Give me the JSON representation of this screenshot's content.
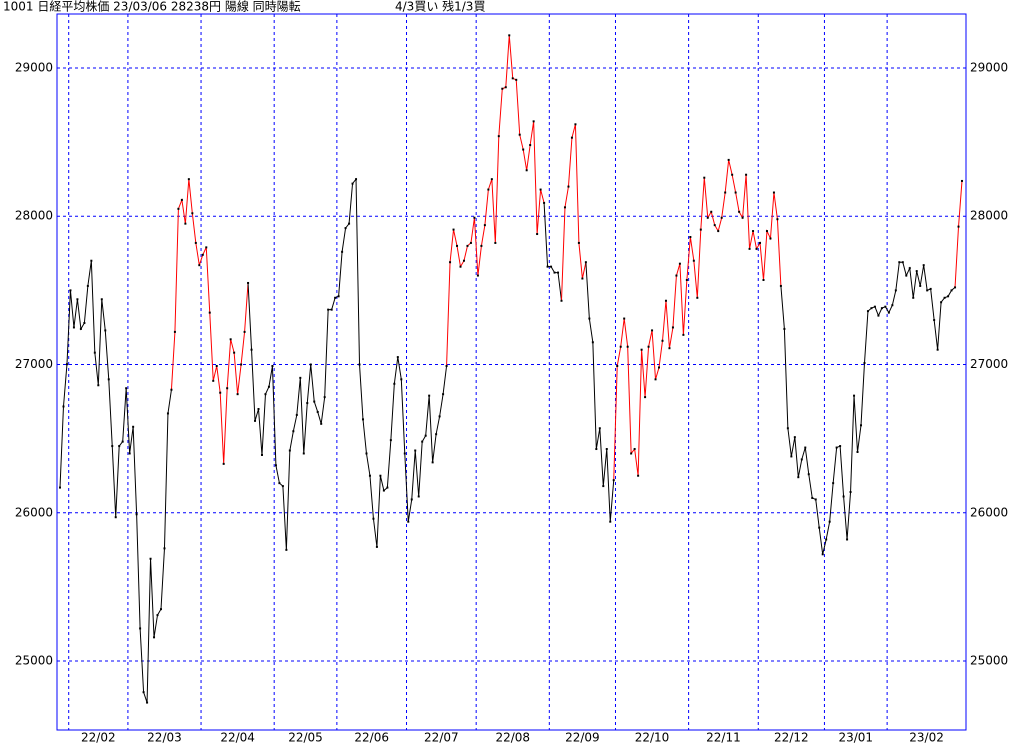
{
  "chart_data": {
    "type": "line",
    "title": "1001 日経平均株価 23/03/06 28238円 陽線 同時陽転",
    "annotation": "4/3買い 残1/3買",
    "ylim": [
      24535,
      29364
    ],
    "yticks": [
      25000,
      26000,
      27000,
      28000,
      29000
    ],
    "grid": true,
    "frame_color": "#0000ff",
    "grid_color": "#0000ff",
    "marker_color": "#000000",
    "categories": [
      null,
      null,
      null,
      "22/02",
      null,
      null,
      null,
      null,
      null,
      null,
      null,
      null,
      null,
      null,
      null,
      null,
      null,
      null,
      null,
      null,
      "22/03",
      null,
      null,
      null,
      null,
      null,
      null,
      null,
      null,
      null,
      null,
      null,
      null,
      null,
      null,
      null,
      null,
      null,
      null,
      null,
      null,
      "22/04",
      null,
      null,
      null,
      null,
      null,
      null,
      null,
      null,
      null,
      null,
      null,
      null,
      null,
      null,
      null,
      null,
      null,
      null,
      null,
      null,
      "22/05",
      null,
      null,
      null,
      null,
      null,
      null,
      null,
      null,
      null,
      null,
      null,
      null,
      null,
      null,
      null,
      null,
      null,
      "22/06",
      null,
      null,
      null,
      null,
      null,
      null,
      null,
      null,
      null,
      null,
      null,
      null,
      null,
      null,
      null,
      null,
      null,
      null,
      null,
      "22/07",
      null,
      null,
      null,
      null,
      null,
      null,
      null,
      null,
      null,
      null,
      null,
      null,
      null,
      null,
      null,
      null,
      null,
      null,
      null,
      "22/08",
      null,
      null,
      null,
      null,
      null,
      null,
      null,
      null,
      null,
      null,
      null,
      null,
      null,
      null,
      null,
      null,
      null,
      null,
      null,
      null,
      "22/09",
      null,
      null,
      null,
      null,
      null,
      null,
      null,
      null,
      null,
      null,
      null,
      null,
      null,
      null,
      null,
      null,
      null,
      null,
      "22/10",
      null,
      null,
      null,
      null,
      null,
      null,
      null,
      null,
      null,
      null,
      null,
      null,
      null,
      null,
      null,
      null,
      null,
      null,
      null,
      null,
      "22/11",
      null,
      null,
      null,
      null,
      null,
      null,
      null,
      null,
      null,
      null,
      null,
      null,
      null,
      null,
      null,
      null,
      null,
      null,
      null,
      "22/12",
      null,
      null,
      null,
      null,
      null,
      null,
      null,
      null,
      null,
      null,
      null,
      null,
      null,
      null,
      null,
      null,
      null,
      null,
      "23/01",
      null,
      null,
      null,
      null,
      null,
      null,
      null,
      null,
      null,
      null,
      null,
      null,
      null,
      null,
      null,
      null,
      null,
      "23/02",
      null,
      null,
      null,
      null,
      null,
      null,
      null,
      null,
      null,
      null,
      null,
      null,
      null,
      null,
      null,
      null,
      null,
      null,
      null,
      null,
      null
    ],
    "values": [
      26170,
      26717,
      27002,
      27500,
      27250,
      27440,
      27240,
      27280,
      27530,
      27700,
      27080,
      26860,
      27440,
      27230,
      26900,
      26450,
      25970,
      26450,
      26480,
      26840,
      26400,
      26580,
      25990,
      25220,
      24790,
      24720,
      25690,
      25160,
      25310,
      25350,
      25760,
      26670,
      26830,
      27220,
      28050,
      28110,
      27950,
      28250,
      28020,
      27820,
      27670,
      27740,
      27790,
      27350,
      26890,
      26990,
      26810,
      26330,
      26840,
      27170,
      27080,
      26800,
      27000,
      27220,
      27550,
      27100,
      26620,
      26700,
      26390,
      26800,
      26850,
      26990,
      26320,
      26200,
      26180,
      25750,
      26420,
      26550,
      26660,
      26910,
      26400,
      26740,
      27000,
      26750,
      26680,
      26600,
      26780,
      27370,
      27370,
      27450,
      27460,
      27760,
      27920,
      27950,
      28220,
      28250,
      27000,
      26630,
      26400,
      26250,
      25960,
      25770,
      26250,
      26150,
      26170,
      26490,
      26870,
      27050,
      26900,
      26400,
      25940,
      26090,
      26420,
      26110,
      26480,
      26520,
      26790,
      26340,
      26530,
      26650,
      26800,
      26990,
      27690,
      27910,
      27800,
      27660,
      27700,
      27800,
      27820,
      27990,
      27600,
      27800,
      27940,
      28180,
      28250,
      27820,
      28540,
      28860,
      28870,
      29220,
      28930,
      28920,
      28550,
      28450,
      28310,
      28480,
      28640,
      27880,
      28180,
      28090,
      27660,
      27660,
      27620,
      27620,
      27430,
      28060,
      28200,
      28530,
      28620,
      27820,
      27580,
      27690,
      27310,
      27150,
      26430,
      26570,
      26180,
      26430,
      25940,
      26220,
      26990,
      27120,
      27310,
      27120,
      26400,
      26430,
      26250,
      27100,
      26780,
      27120,
      27230,
      26900,
      26980,
      27160,
      27430,
      27110,
      27250,
      27600,
      27680,
      27200,
      27570,
      27860,
      27700,
      27450,
      27910,
      28260,
      27990,
      28030,
      27940,
      27900,
      27990,
      28160,
      28380,
      28280,
      28160,
      28030,
      27990,
      28280,
      27780,
      27900,
      27780,
      27820,
      27570,
      27900,
      27850,
      28160,
      27980,
      27530,
      27240,
      26570,
      26380,
      26510,
      26240,
      26360,
      26440,
      26260,
      26100,
      26090,
      25900,
      25720,
      25820,
      25940,
      26200,
      26440,
      26450,
      26110,
      25820,
      26140,
      26790,
      26410,
      26590,
      27010,
      27360,
      27380,
      27390,
      27330,
      27380,
      27390,
      27350,
      27400,
      27500,
      27690,
      27690,
      27600,
      27650,
      27450,
      27630,
      27530,
      27670,
      27500,
      27510,
      27300,
      27100,
      27420,
      27450,
      27460,
      27500,
      27520,
      27930,
      28238
    ],
    "line_colors": [
      "#000",
      "#000",
      "#000",
      "#000",
      "#000",
      "#000",
      "#000",
      "#000",
      "#000",
      "#000",
      "#000",
      "#000",
      "#000",
      "#000",
      "#000",
      "#000",
      "#000",
      "#000",
      "#000",
      "#000",
      "#000",
      "#000",
      "#000",
      "#000",
      "#000",
      "#000",
      "#000",
      "#000",
      "#000",
      "#000",
      "#000",
      "#000",
      "#000",
      "#f00",
      "#f00",
      "#f00",
      "#f00",
      "#f00",
      "#f00",
      "#f00",
      "#f00",
      "#f00",
      "#f00",
      "#f00",
      "#f00",
      "#f00",
      "#f00",
      "#f00",
      "#f00",
      "#f00",
      "#f00",
      "#f00",
      "#f00",
      "#f00",
      "#f00",
      "#000",
      "#000",
      "#000",
      "#000",
      "#000",
      "#000",
      "#000",
      "#000",
      "#000",
      "#000",
      "#000",
      "#000",
      "#000",
      "#000",
      "#000",
      "#000",
      "#000",
      "#000",
      "#000",
      "#000",
      "#000",
      "#000",
      "#000",
      "#000",
      "#000",
      "#000",
      "#000",
      "#000",
      "#000",
      "#000",
      "#000",
      "#000",
      "#000",
      "#000",
      "#000",
      "#000",
      "#000",
      "#000",
      "#000",
      "#000",
      "#000",
      "#000",
      "#000",
      "#000",
      "#000",
      "#000",
      "#000",
      "#000",
      "#000",
      "#000",
      "#000",
      "#000",
      "#000",
      "#000",
      "#000",
      "#000",
      "#000",
      "#f00",
      "#f00",
      "#f00",
      "#f00",
      "#f00",
      "#f00",
      "#f00",
      "#f00",
      "#f00",
      "#f00",
      "#f00",
      "#f00",
      "#f00",
      "#f00",
      "#f00",
      "#f00",
      "#f00",
      "#f00",
      "#f00",
      "#f00",
      "#f00",
      "#f00",
      "#f00",
      "#f00",
      "#f00",
      "#f00",
      "#f00",
      "#f00",
      "#000",
      "#000",
      "#000",
      "#000",
      "#000",
      "#f00",
      "#f00",
      "#f00",
      "#f00",
      "#f00",
      "#f00",
      "#f00",
      "#000",
      "#000",
      "#000",
      "#000",
      "#000",
      "#000",
      "#000",
      "#000",
      "#f00",
      "#f00",
      "#f00",
      "#f00",
      "#f00",
      "#f00",
      "#f00",
      "#f00",
      "#f00",
      "#f00",
      "#f00",
      "#f00",
      "#f00",
      "#f00",
      "#f00",
      "#f00",
      "#f00",
      "#f00",
      "#f00",
      "#f00",
      "#f00",
      "#f00",
      "#f00",
      "#f00",
      "#f00",
      "#f00",
      "#f00",
      "#f00",
      "#f00",
      "#f00",
      "#f00",
      "#f00",
      "#f00",
      "#f00",
      "#f00",
      "#f00",
      "#f00",
      "#f00",
      "#f00",
      "#f00",
      "#f00",
      "#f00",
      "#f00",
      "#f00",
      "#f00",
      "#f00",
      "#f00",
      "#f00",
      "#000",
      "#000",
      "#000",
      "#000",
      "#000",
      "#000",
      "#000",
      "#000",
      "#000",
      "#000",
      "#000",
      "#000",
      "#000",
      "#000",
      "#000",
      "#000",
      "#000",
      "#000",
      "#000",
      "#000",
      "#000",
      "#000",
      "#000",
      "#000",
      "#000",
      "#000",
      "#000",
      "#000",
      "#000",
      "#000",
      "#000",
      "#000",
      "#000",
      "#000",
      "#000",
      "#000",
      "#000",
      "#000",
      "#000",
      "#000",
      "#000",
      "#000",
      "#000",
      "#000",
      "#000",
      "#000",
      "#000",
      "#000",
      "#000",
      "#000",
      "#f00",
      "#f00"
    ]
  }
}
